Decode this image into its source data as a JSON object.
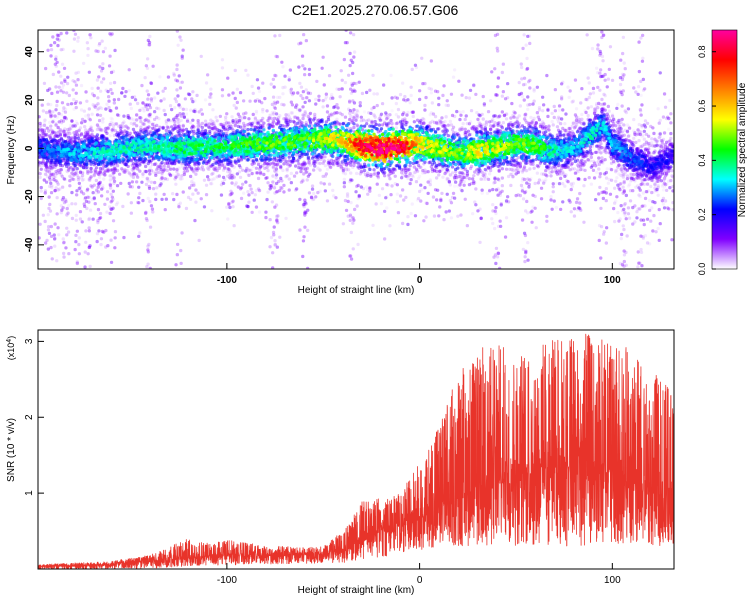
{
  "title": "C2E1.2025.270.06.57.G06",
  "chart_data": [
    {
      "type": "heatmap",
      "xlabel": "Height of straight line (km)",
      "ylabel": "Frequency (Hz)",
      "xlim": [
        -198,
        132
      ],
      "ylim": [
        -50,
        49
      ],
      "xticks": [
        -100,
        0,
        100
      ],
      "xtick_labels": [
        "-100",
        "0",
        "100"
      ],
      "yticks": [
        -40,
        -20,
        0,
        20,
        40
      ],
      "ytick_labels": [
        "-40",
        "-20",
        "0",
        "20",
        "40"
      ],
      "colorbar": {
        "label": "Normalized spectral amplitude",
        "range": [
          0.0,
          0.88
        ],
        "ticks": [
          0.0,
          0.2,
          0.4,
          0.6,
          0.8
        ],
        "tick_labels": [
          "0.0",
          "0.2",
          "0.4",
          "0.6",
          "0.8"
        ],
        "colors": [
          "#ffffff",
          "#8000ff",
          "#0000ff",
          "#00ffff",
          "#00ff00",
          "#ffff00",
          "#ff8000",
          "#ff0000",
          "#ff00a0"
        ]
      },
      "ridge": {
        "x": [
          -198,
          -180,
          -160,
          -140,
          -120,
          -100,
          -80,
          -60,
          -50,
          -40,
          -30,
          -20,
          -10,
          0,
          10,
          20,
          30,
          40,
          50,
          60,
          70,
          80,
          90,
          95,
          100,
          110,
          120,
          132
        ],
        "center_hz": [
          0,
          -2,
          -1,
          1,
          0,
          1,
          2,
          3,
          4,
          3,
          1,
          0,
          1,
          2,
          0,
          -2,
          -1,
          0,
          2,
          1,
          -1,
          0,
          6,
          10,
          2,
          -4,
          -8,
          -3
        ],
        "peak_amplitude": [
          0.25,
          0.3,
          0.35,
          0.35,
          0.4,
          0.4,
          0.45,
          0.45,
          0.5,
          0.55,
          0.75,
          0.85,
          0.8,
          0.55,
          0.5,
          0.45,
          0.55,
          0.5,
          0.45,
          0.45,
          0.35,
          0.3,
          0.35,
          0.3,
          0.3,
          0.25,
          0.2,
          0.2
        ]
      }
    },
    {
      "type": "line",
      "xlabel": "Height of straight line (km)",
      "ylabel": "SNR (10 * v/v)",
      "y_scale_label": "(x10",
      "y_scale_exponent": "4",
      "y_scale_close": ")",
      "xlim": [
        -198,
        132
      ],
      "ylim": [
        0,
        3.15
      ],
      "xticks": [
        -100,
        0,
        100
      ],
      "xtick_labels": [
        "-100",
        "0",
        "100"
      ],
      "yticks": [
        1,
        2,
        3
      ],
      "ytick_labels": [
        "1",
        "2",
        "3"
      ],
      "color": "#e8332a",
      "series": [
        {
          "name": "SNR",
          "x": [
            -198,
            -180,
            -160,
            -150,
            -140,
            -130,
            -120,
            -110,
            -100,
            -90,
            -80,
            -70,
            -60,
            -50,
            -40,
            -30,
            -20,
            -10,
            0,
            10,
            20,
            30,
            40,
            50,
            60,
            70,
            80,
            90,
            100,
            110,
            120,
            132
          ],
          "mean": [
            0.03,
            0.04,
            0.05,
            0.07,
            0.09,
            0.11,
            0.13,
            0.15,
            0.16,
            0.16,
            0.17,
            0.18,
            0.18,
            0.19,
            0.22,
            0.35,
            0.5,
            0.58,
            0.65,
            0.75,
            0.9,
            1.0,
            1.1,
            1.15,
            1.2,
            1.25,
            1.2,
            1.15,
            1.1,
            1.0,
            0.9,
            0.85
          ],
          "max": [
            0.06,
            0.08,
            0.1,
            0.15,
            0.18,
            0.3,
            0.4,
            0.35,
            0.38,
            0.35,
            0.3,
            0.3,
            0.28,
            0.3,
            0.5,
            0.9,
            0.95,
            1.0,
            1.4,
            1.9,
            2.6,
            2.9,
            3.0,
            2.8,
            2.9,
            3.05,
            3.1,
            3.1,
            3.0,
            2.9,
            2.6,
            2.4
          ],
          "min": [
            0.0,
            0.0,
            0.0,
            0.0,
            0.01,
            0.02,
            0.03,
            0.05,
            0.05,
            0.06,
            0.06,
            0.07,
            0.07,
            0.08,
            0.08,
            0.1,
            0.15,
            0.2,
            0.25,
            0.3,
            0.3,
            0.3,
            0.3,
            0.3,
            0.3,
            0.3,
            0.3,
            0.3,
            0.3,
            0.3,
            0.3,
            0.3
          ]
        }
      ]
    }
  ]
}
